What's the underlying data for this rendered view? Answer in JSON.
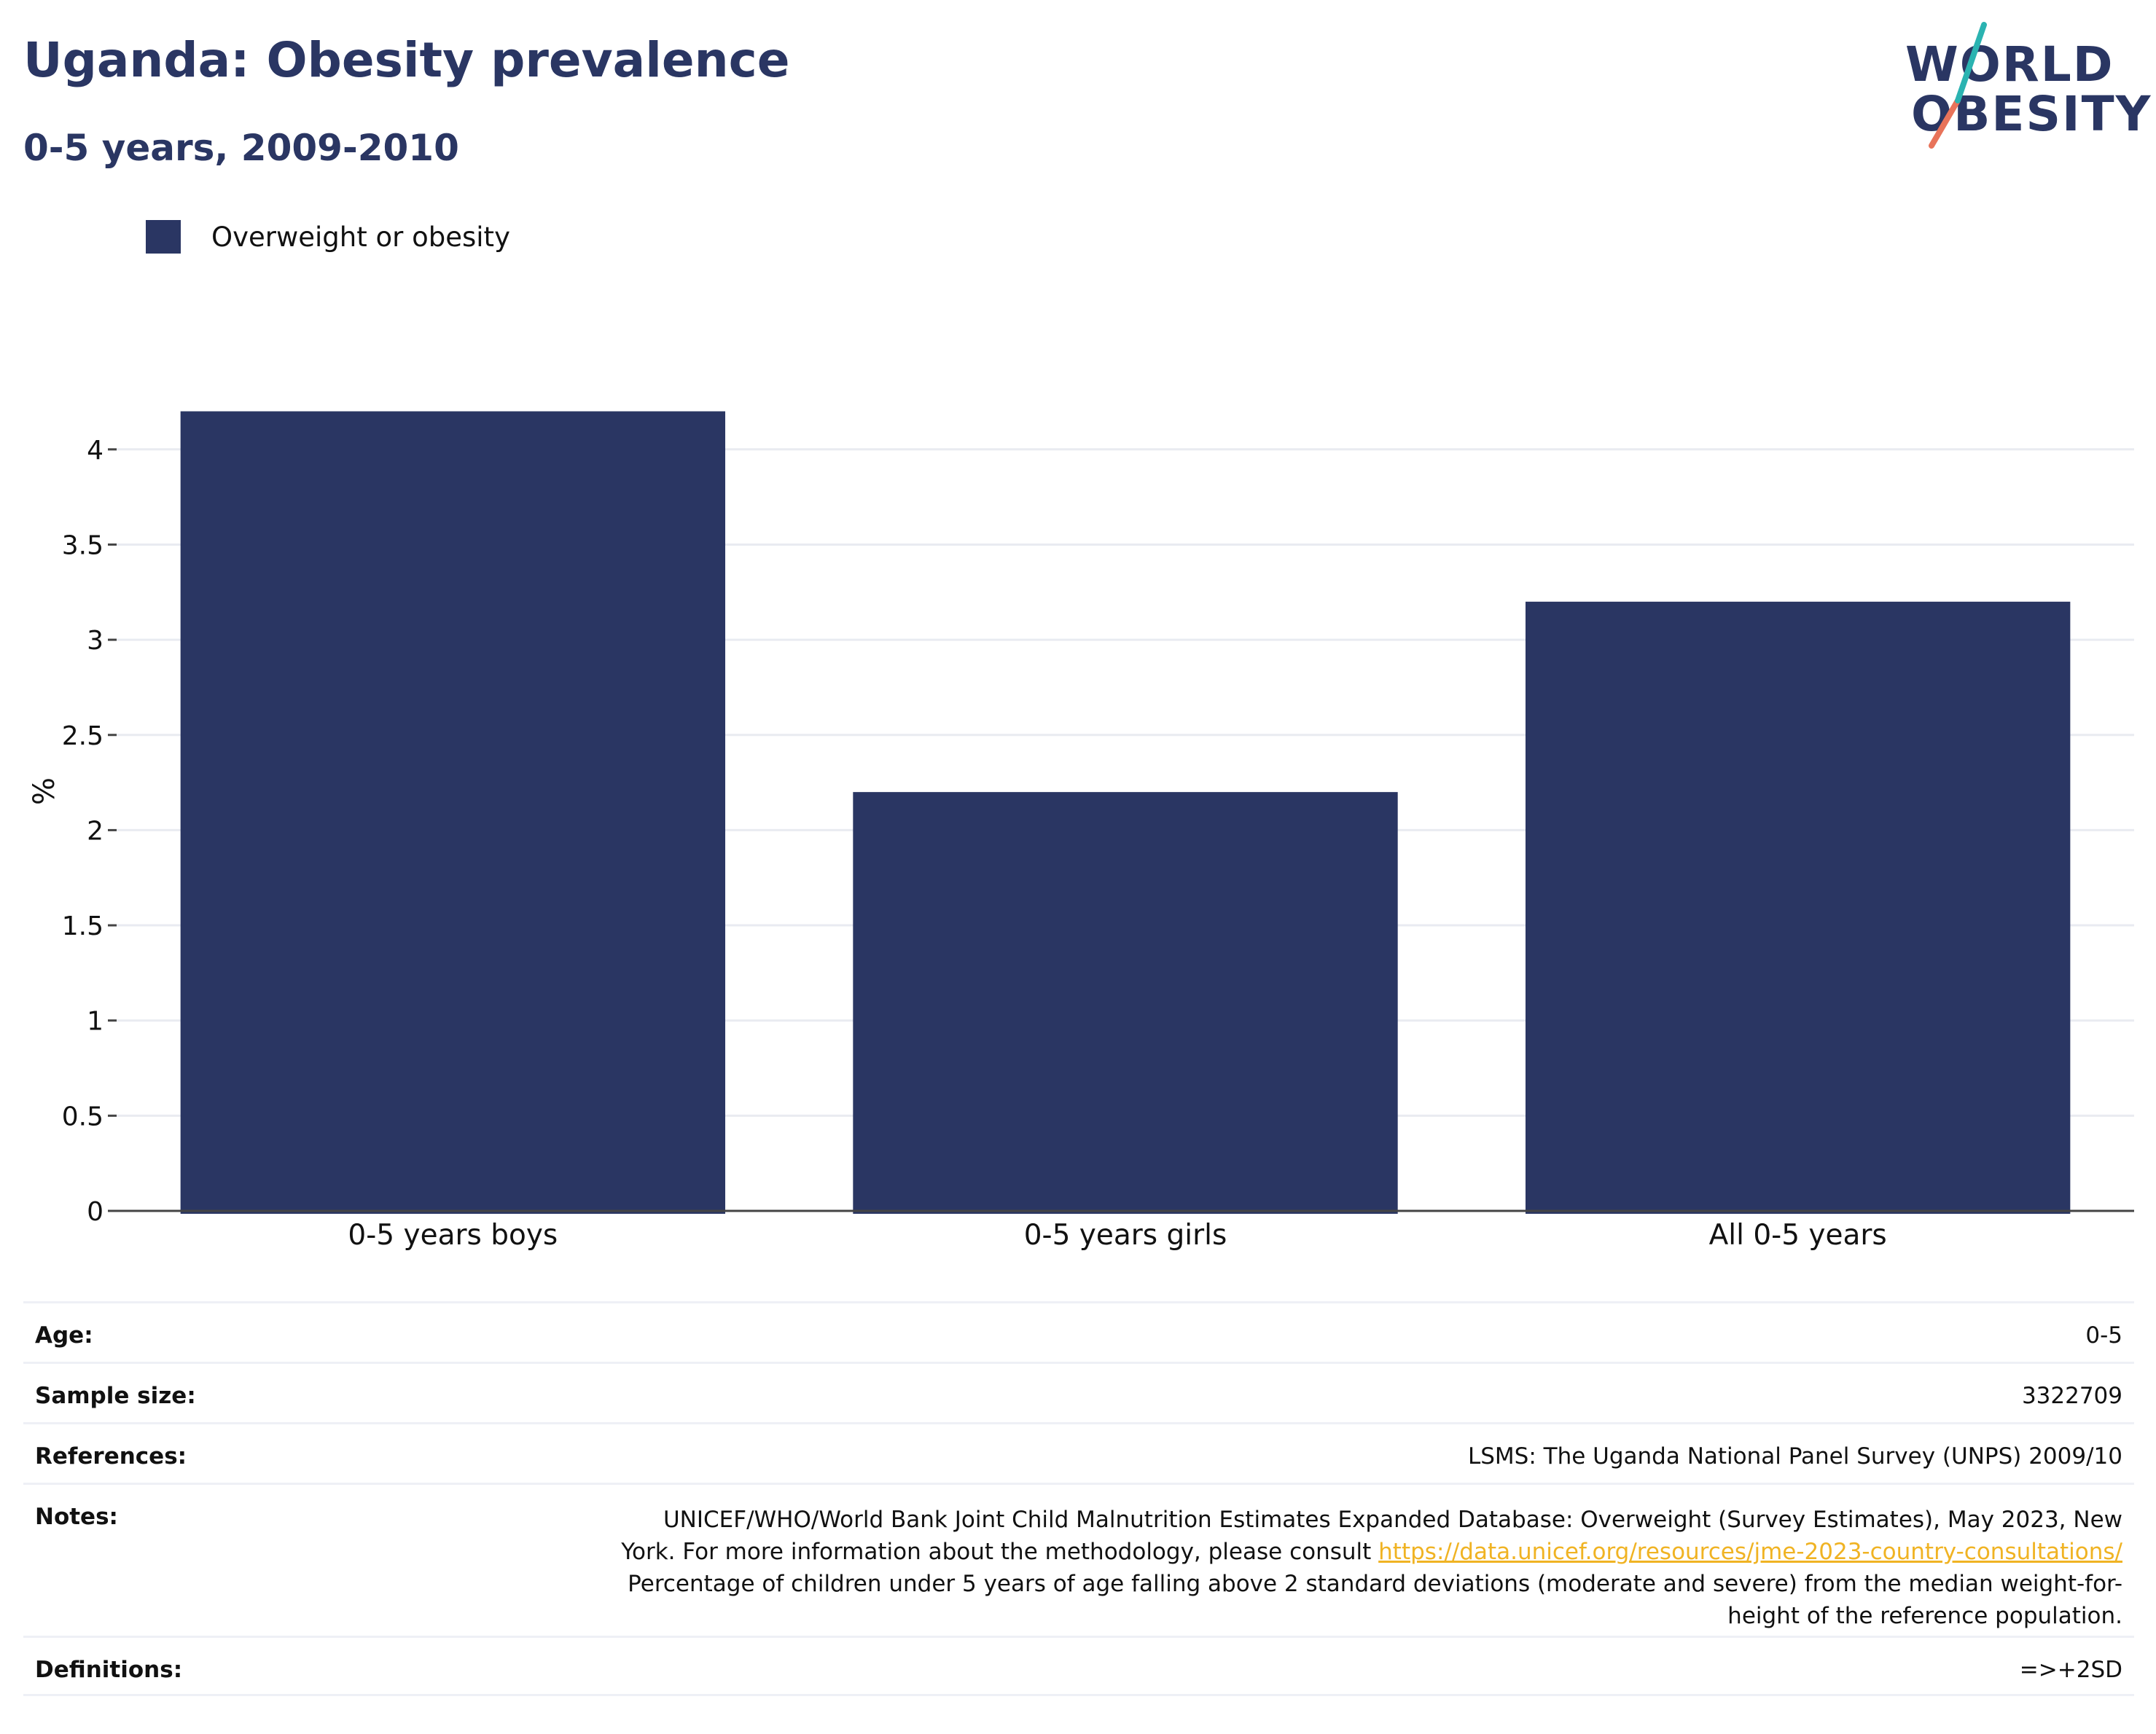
{
  "header": {
    "title": "Uganda: Obesity prevalence",
    "subtitle": "0-5 years, 2009-2010"
  },
  "logo": {
    "line1": "WORLD",
    "line2": "OBESITY",
    "text_color": "#2a3663",
    "accent_teal": "#2bb3b1",
    "accent_coral": "#e8735a"
  },
  "legend": {
    "items": [
      {
        "label": "Overweight or obesity",
        "color": "#2a3663"
      }
    ]
  },
  "chart_data": {
    "type": "bar",
    "categories": [
      "0-5 years boys",
      "0-5 years girls",
      "All 0-5 years"
    ],
    "series": [
      {
        "name": "Overweight or obesity",
        "color": "#2a3663",
        "values": [
          4.2,
          2.2,
          3.2
        ]
      }
    ],
    "ylabel": "%",
    "xlabel": "",
    "ylim": [
      0,
      4.2
    ],
    "yticks": [
      0,
      0.5,
      1,
      1.5,
      2,
      2.5,
      3,
      3.5,
      4
    ],
    "ytick_labels": [
      "0",
      "0.5",
      "1",
      "1.5",
      "2",
      "2.5",
      "3",
      "3.5",
      "4"
    ],
    "grid": true,
    "legend_position": "top-left"
  },
  "info": {
    "age": {
      "label": "Age:",
      "value": "0-5"
    },
    "sample_size": {
      "label": "Sample size:",
      "value": "3322709"
    },
    "references": {
      "label": "References:",
      "value": "LSMS: The Uganda National Panel Survey (UNPS) 2009/10"
    },
    "notes": {
      "label": "Notes:",
      "line1": "UNICEF/WHO/World Bank Joint Child Malnutrition Estimates Expanded Database: Overweight (Survey Estimates), May 2023, New",
      "line2_prefix": "York. For more information about the methodology, please consult ",
      "link": "https://data.unicef.org/resources/jme-2023-country-consultations/",
      "line3": "Percentage of children under 5 years of age falling above 2 standard deviations (moderate and severe) from the median weight-for-",
      "line4": "height of the reference population."
    },
    "definitions": {
      "label": "Definitions:",
      "value": "=>+2SD"
    }
  }
}
